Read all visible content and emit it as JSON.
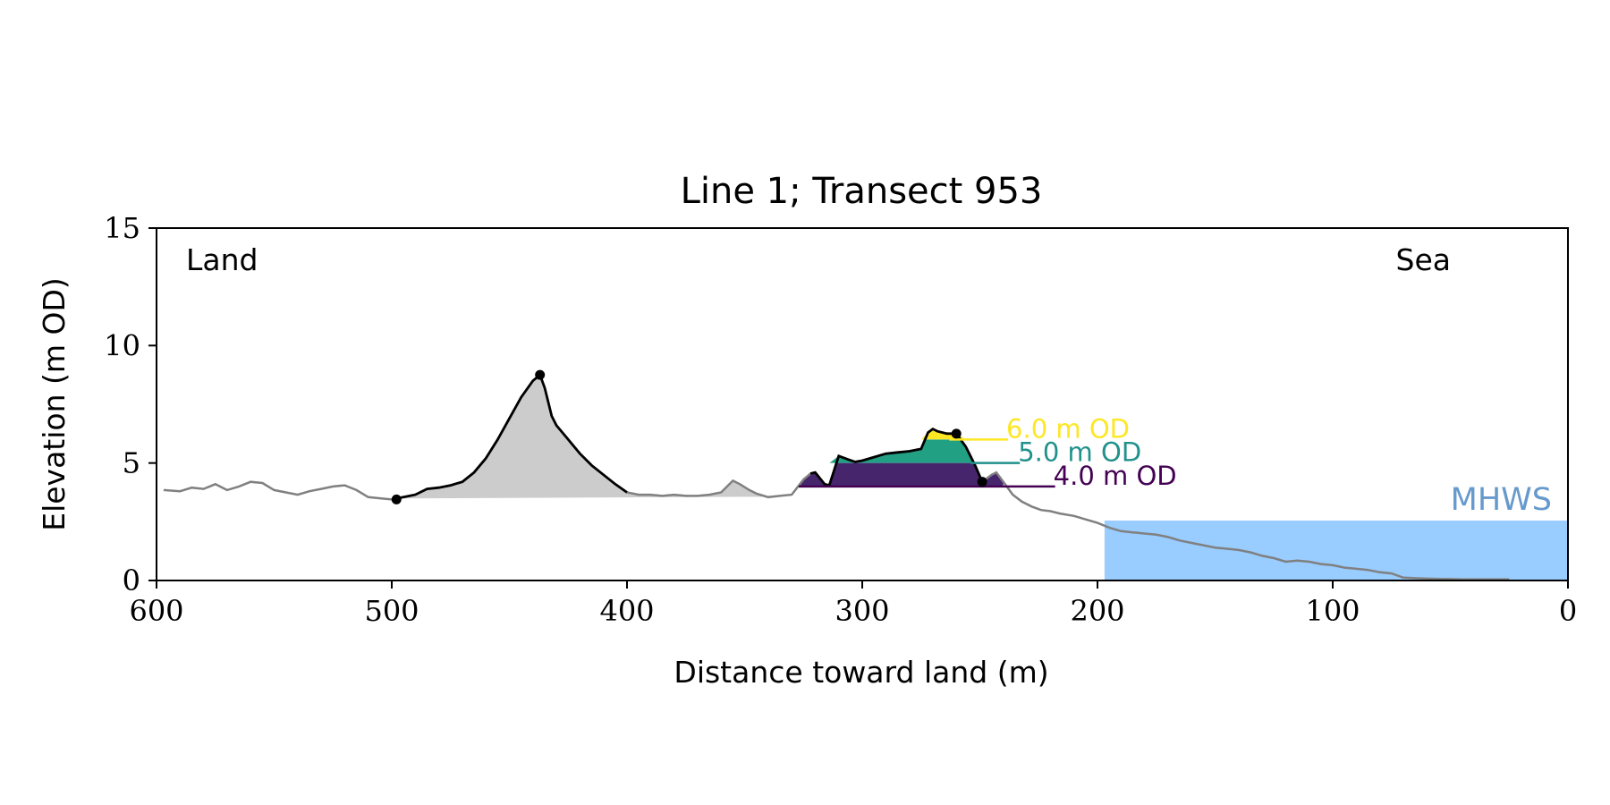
{
  "chart_data": {
    "type": "area",
    "title": "Line 1; Transect 953",
    "xlabel": "Distance toward land (m)",
    "ylabel": "Elevation (m OD)",
    "xlim": [
      600,
      0
    ],
    "ylim": [
      0,
      15
    ],
    "x_ticks": [
      600,
      500,
      400,
      300,
      200,
      100,
      0
    ],
    "y_ticks": [
      0,
      5,
      10,
      15
    ],
    "grid": false,
    "annotations": {
      "land": "Land",
      "sea": "Sea"
    },
    "mhws": {
      "label": "MHWS",
      "elevation": 2.55,
      "x_start": 197,
      "x_end": 0,
      "color": "#99ccff",
      "label_color": "#6699cc"
    },
    "profile": {
      "color": "#808080",
      "x": [
        597,
        590,
        585,
        580,
        575,
        570,
        565,
        560,
        555,
        550,
        545,
        540,
        535,
        530,
        525,
        520,
        515,
        510,
        505,
        500,
        495,
        490,
        485,
        480,
        475,
        470,
        465,
        460,
        455,
        450,
        445,
        440,
        437,
        435,
        432,
        430,
        425,
        420,
        415,
        410,
        405,
        400,
        395,
        390,
        385,
        380,
        375,
        370,
        365,
        360,
        355,
        352,
        348,
        345,
        340,
        335,
        330,
        325,
        322,
        320,
        316,
        314,
        310,
        306,
        303,
        300,
        295,
        290,
        285,
        280,
        275,
        272,
        270,
        268,
        264,
        260,
        256,
        252,
        249,
        245,
        243,
        240,
        236,
        232,
        228,
        224,
        220,
        216,
        210,
        205,
        200,
        195,
        190,
        185,
        180,
        175,
        170,
        165,
        160,
        155,
        150,
        145,
        140,
        135,
        130,
        125,
        120,
        115,
        110,
        105,
        100,
        95,
        90,
        85,
        80,
        75,
        70,
        65,
        60,
        55,
        50,
        45,
        40,
        35,
        30,
        25
      ],
      "y": [
        3.85,
        3.8,
        3.95,
        3.9,
        4.1,
        3.85,
        4.0,
        4.2,
        4.15,
        3.85,
        3.75,
        3.65,
        3.8,
        3.9,
        4.0,
        4.05,
        3.85,
        3.55,
        3.5,
        3.45,
        3.55,
        3.65,
        3.9,
        3.95,
        4.05,
        4.2,
        4.6,
        5.2,
        6.0,
        6.9,
        7.8,
        8.5,
        8.75,
        8.2,
        7.0,
        6.6,
        6.0,
        5.4,
        4.9,
        4.5,
        4.1,
        3.75,
        3.65,
        3.65,
        3.6,
        3.65,
        3.6,
        3.6,
        3.65,
        3.75,
        4.25,
        4.1,
        3.85,
        3.7,
        3.55,
        3.6,
        3.65,
        4.3,
        4.55,
        4.6,
        4.1,
        4.05,
        5.3,
        5.15,
        5.05,
        5.1,
        5.25,
        5.4,
        5.45,
        5.5,
        5.6,
        6.3,
        6.45,
        6.35,
        6.25,
        6.25,
        5.7,
        4.9,
        4.2,
        4.5,
        4.6,
        4.2,
        3.65,
        3.35,
        3.15,
        3.0,
        2.95,
        2.85,
        2.75,
        2.6,
        2.45,
        2.25,
        2.1,
        2.05,
        2.0,
        1.95,
        1.85,
        1.7,
        1.6,
        1.5,
        1.4,
        1.35,
        1.3,
        1.2,
        1.05,
        0.95,
        0.8,
        0.85,
        0.8,
        0.7,
        0.65,
        0.55,
        0.5,
        0.45,
        0.35,
        0.3,
        0.12,
        0.1,
        0.08,
        0.07,
        0.06,
        0.05,
        0.05,
        0.05,
        0.05,
        0.05
      ]
    },
    "dune_profiles": [
      {
        "name": "",
        "x_start": 498,
        "x_end": 400,
        "color": "#000000",
        "fill": "#cccccc"
      },
      {
        "name": "",
        "x_start": 322,
        "x_end": 249,
        "color": "#000000"
      }
    ],
    "markers": [
      {
        "x": 498,
        "y": 3.45
      },
      {
        "x": 437,
        "y": 8.75
      },
      {
        "x": 260,
        "y": 6.25
      },
      {
        "x": 249,
        "y": 4.2
      }
    ],
    "volume_bands": {
      "range_x": [
        327,
        240
      ],
      "bands": [
        {
          "from": 4.0,
          "to": 5.0,
          "color": "#46256d"
        },
        {
          "from": 5.0,
          "to": 6.0,
          "color": "#22a084"
        },
        {
          "from": 6.0,
          "to": 6.6,
          "color": "#fde725"
        }
      ]
    },
    "od_levels": [
      {
        "label": "6.0 m OD",
        "elevation": 6.0,
        "x_start": 263,
        "x_end": 238,
        "color": "#fde725"
      },
      {
        "label": "5.0 m OD",
        "elevation": 5.0,
        "x_start": 254,
        "x_end": 233,
        "color": "#21918c"
      },
      {
        "label": "4.0 m OD",
        "elevation": 4.0,
        "x_start": 327,
        "x_end": 218,
        "color": "#440154"
      }
    ]
  }
}
